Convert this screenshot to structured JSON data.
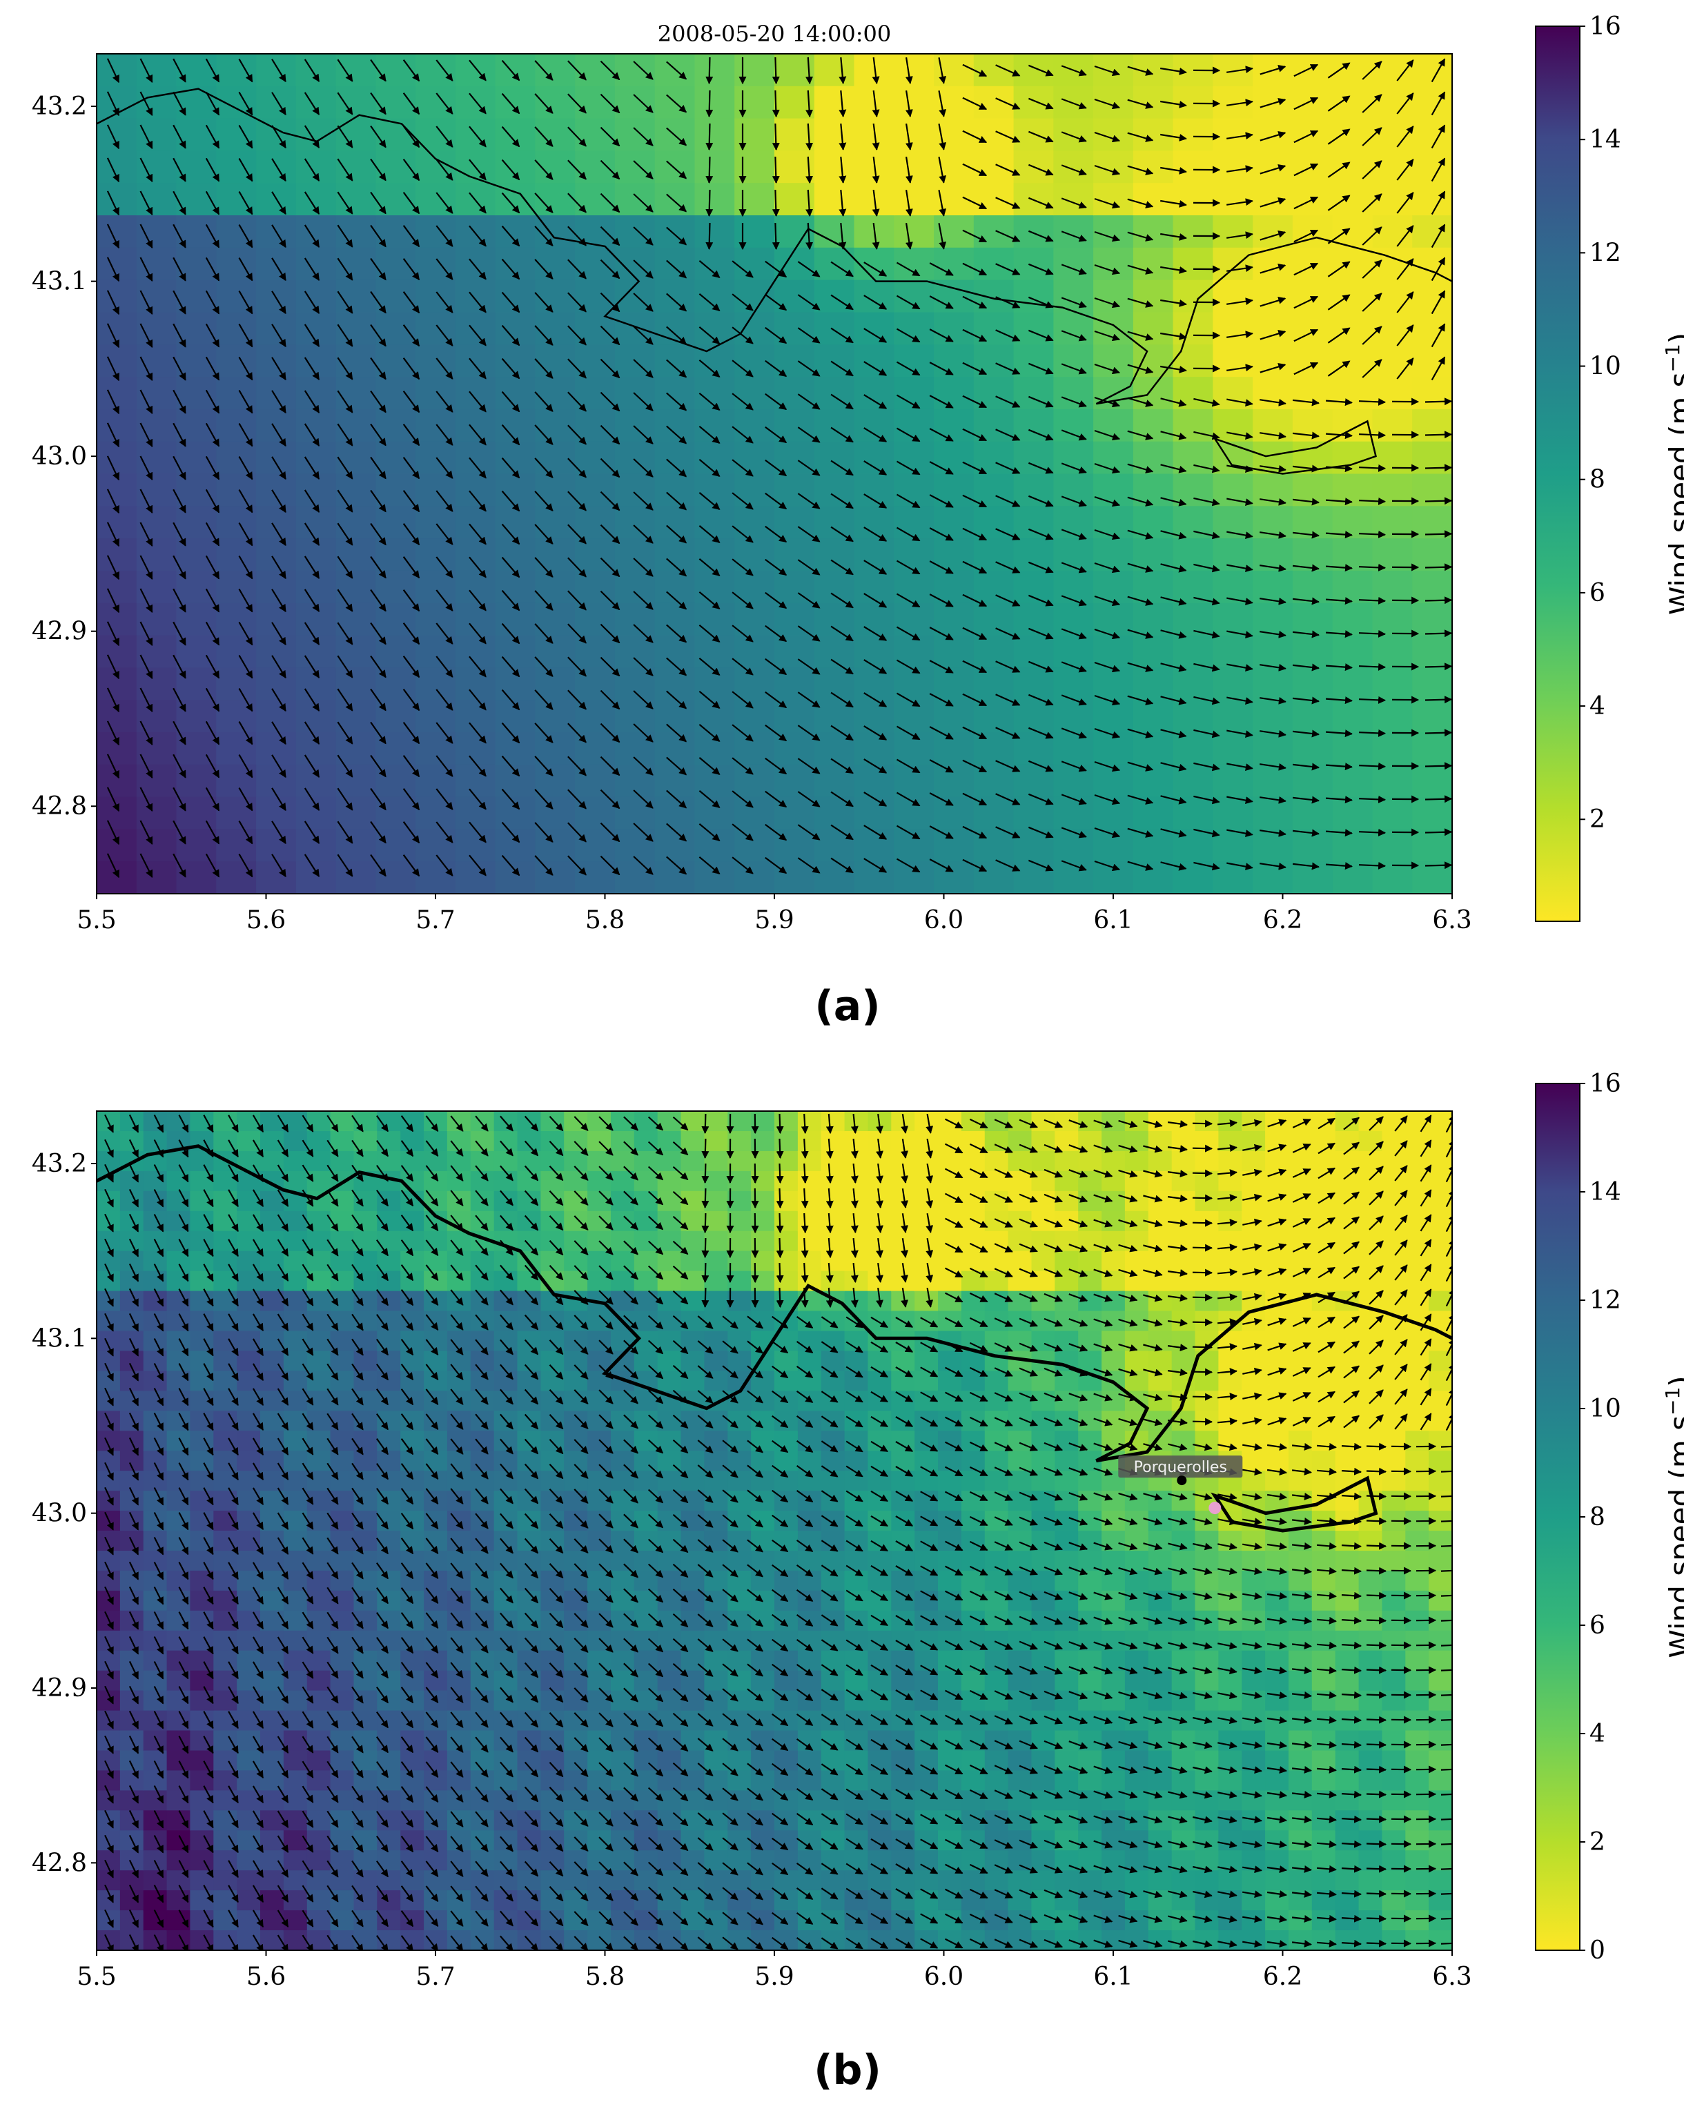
{
  "chart_data": [
    {
      "type": "heatmap",
      "panel_label": "(a)",
      "timestamp": "2008-05-20 14:00:00",
      "xlim": [
        5.5,
        6.3
      ],
      "ylim": [
        42.75,
        43.23
      ],
      "x_ticks": [
        "5.5",
        "5.6",
        "5.7",
        "5.8",
        "5.9",
        "6.0",
        "6.1",
        "6.2",
        "6.3"
      ],
      "y_ticks": [
        "43.2",
        "43.1",
        "43.0",
        "42.9",
        "42.8"
      ],
      "colorbar": {
        "label": "Wind speed (m.s",
        "label_sup": "−1",
        "label_end": ")",
        "range": [
          0.2,
          16
        ],
        "ticks": [
          "16",
          "14",
          "12",
          "10",
          "8",
          "6",
          "4",
          "2"
        ]
      },
      "colormap": "viridis_r",
      "field": {
        "description_values": "Wind speed approx 14–16 m/s in south-west, decreasing to 3–6 m/s toward east and near coast; yellow (~1 m/s) near 5.95, 43.15",
        "speed_range": [
          0.2,
          16
        ]
      }
    },
    {
      "type": "heatmap",
      "panel_label": "(b)",
      "timestamp": "",
      "xlim": [
        5.5,
        6.3
      ],
      "ylim": [
        42.75,
        43.23
      ],
      "x_ticks": [
        "5.5",
        "5.6",
        "5.7",
        "5.8",
        "5.9",
        "6.0",
        "6.1",
        "6.2",
        "6.3"
      ],
      "y_ticks": [
        "43.2",
        "43.1",
        "43.0",
        "42.9",
        "42.8"
      ],
      "colorbar": {
        "label": "Wind speed (m.s",
        "label_sup": "−1",
        "label_end": ")",
        "range": [
          0,
          16
        ],
        "ticks": [
          "16",
          "14",
          "12",
          "10",
          "8",
          "6",
          "4",
          "2",
          "0"
        ]
      },
      "colormap": "viridis_r",
      "annotation": {
        "text": "Porquerolles",
        "lon": 6.16,
        "lat": 43.003,
        "marker_color": "#e8a0d0"
      }
    }
  ]
}
